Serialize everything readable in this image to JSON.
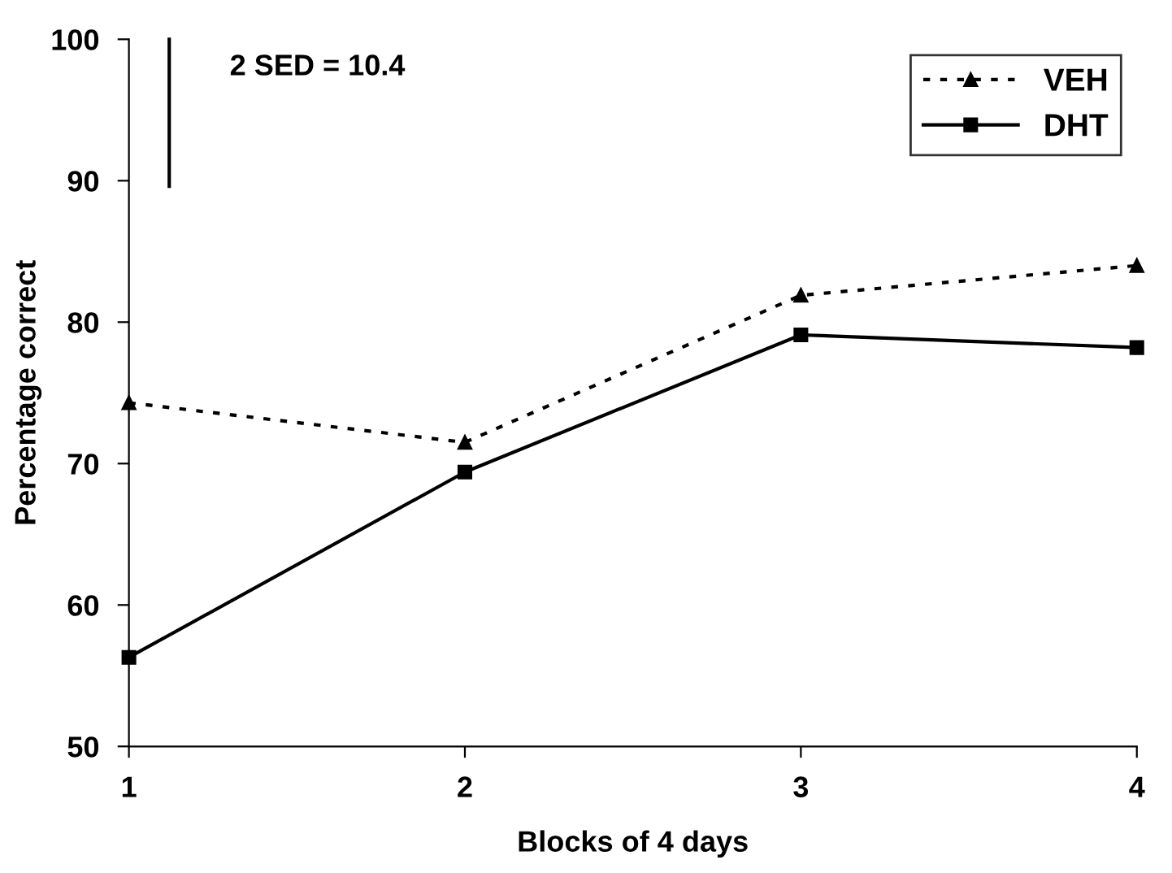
{
  "chart_data": {
    "type": "line",
    "xlabel": "Blocks of 4 days",
    "ylabel": "Percentage correct",
    "x": [
      1,
      2,
      3,
      4
    ],
    "xlim": [
      1,
      4
    ],
    "xticks": [
      1,
      2,
      3,
      4
    ],
    "ylim": [
      50,
      100
    ],
    "yticks": [
      50,
      60,
      70,
      80,
      90,
      100
    ],
    "grid": false,
    "legend": "top right",
    "annotations": [
      "2 SED = 10.4"
    ],
    "series": [
      {
        "name": "VEH",
        "color": "#000000",
        "values": [
          74.3,
          71.5,
          81.9,
          84.0
        ],
        "marker": "triangle",
        "line_style": "dotted"
      },
      {
        "name": "DHT",
        "color": "#000000",
        "values": [
          56.3,
          69.4,
          79.1,
          78.2
        ],
        "marker": "square",
        "line_style": "solid"
      },
      {
        "color": "#000000",
        "x": [
          1.12,
          1.12
        ],
        "values": [
          89.6,
          100
        ],
        "marker": "none",
        "line_style": "solid"
      }
    ]
  }
}
